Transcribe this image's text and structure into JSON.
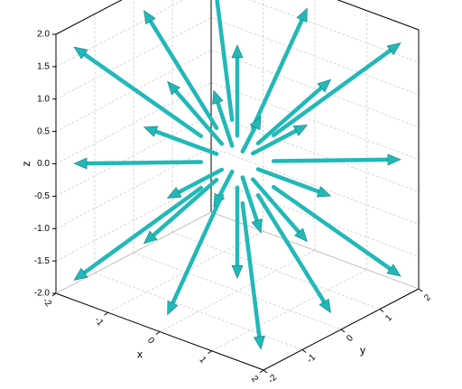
{
  "chart_data": {
    "type": "vector3d",
    "xlabel": "x",
    "ylabel": "y",
    "zlabel": "z",
    "xlim": [
      -2,
      2
    ],
    "ylim": [
      -2,
      2
    ],
    "zlim": [
      -2,
      2
    ],
    "xticks": [
      -2,
      -1,
      0,
      1,
      2
    ],
    "yticks": [
      -2,
      -1,
      0,
      1,
      2
    ],
    "zticks": [
      {
        "value": -2,
        "label": "-2.0"
      },
      {
        "value": -1.5,
        "label": "-1.5"
      },
      {
        "value": -1,
        "label": "-1.0"
      },
      {
        "value": -0.5,
        "label": "-0.5"
      },
      {
        "value": 0,
        "label": "0.0"
      },
      {
        "value": 0.5,
        "label": "0.5"
      },
      {
        "value": 1,
        "label": "1.0"
      },
      {
        "value": 1.5,
        "label": "1.5"
      },
      {
        "value": 2,
        "label": "2.0"
      }
    ],
    "grid": true,
    "color": "#22b8b8",
    "x": [
      -0.4,
      -0.4,
      -0.4,
      -0.4,
      -0.4,
      -0.4,
      -0.4,
      -0.4,
      -0.4,
      0,
      0,
      0,
      0,
      0,
      0,
      0,
      0,
      0.4,
      0.4,
      0.4,
      0.4,
      0.4,
      0.4,
      0.4,
      0.4,
      0.4
    ],
    "y": [
      -0.4,
      -0.4,
      -0.4,
      0,
      0,
      0,
      0.4,
      0.4,
      0.4,
      -0.4,
      -0.4,
      -0.4,
      0,
      0,
      0.4,
      0.4,
      0.4,
      -0.4,
      -0.4,
      -0.4,
      0,
      0,
      0,
      0.4,
      0.4,
      0.4
    ],
    "z": [
      -0.4,
      0,
      0.4,
      -0.4,
      0,
      0.4,
      -0.4,
      0,
      0.4,
      -0.4,
      0,
      0.4,
      -0.4,
      0.4,
      -0.4,
      0,
      0.4,
      -0.4,
      0,
      0.4,
      -0.4,
      0,
      0.4,
      -0.4,
      0,
      0.4
    ],
    "u": [
      -1.4,
      -1.4,
      -1.4,
      -1.4,
      -1.4,
      -1.4,
      -1.4,
      -1.4,
      -1.4,
      0,
      0,
      0,
      0,
      0,
      0,
      0,
      0,
      1.4,
      1.4,
      1.4,
      1.4,
      1.4,
      1.4,
      1.4,
      1.4,
      1.4
    ],
    "v": [
      -1.4,
      -1.4,
      -1.4,
      0,
      0,
      0,
      1.4,
      1.4,
      1.4,
      -1.4,
      -1.4,
      -1.4,
      0,
      0,
      1.4,
      1.4,
      1.4,
      -1.4,
      -1.4,
      -1.4,
      0,
      0,
      0,
      1.4,
      1.4,
      1.4
    ],
    "w": [
      -1.4,
      0,
      1.4,
      -1.4,
      0,
      1.4,
      -1.4,
      0,
      1.4,
      -1.4,
      0,
      1.4,
      -1.4,
      1.4,
      -1.4,
      0,
      1.4,
      -1.4,
      0,
      1.4,
      -1.4,
      0,
      1.4,
      -1.4,
      0,
      1.4
    ]
  }
}
